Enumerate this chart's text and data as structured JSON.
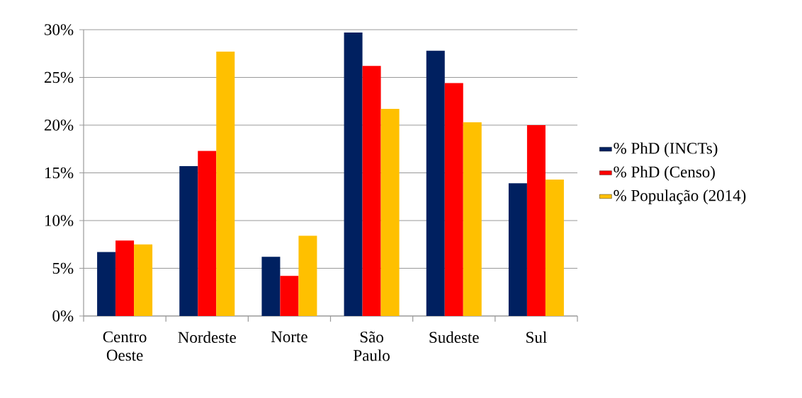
{
  "chart_data": {
    "type": "bar",
    "categories": [
      "Centro Oeste",
      "Nordeste",
      "Norte",
      "São Paulo",
      "Sudeste",
      "Sul"
    ],
    "series": [
      {
        "name": "% PhD (INCTs)",
        "color": "#002060",
        "values": [
          6.7,
          15.7,
          6.2,
          29.7,
          27.8,
          13.9
        ]
      },
      {
        "name": "% PhD (Censo)",
        "color": "#ff0000",
        "values": [
          7.9,
          17.3,
          4.2,
          26.2,
          24.4,
          20.0
        ]
      },
      {
        "name": "% População (2014)",
        "color": "#ffc000",
        "values": [
          7.5,
          27.7,
          8.4,
          21.7,
          20.3,
          14.3
        ]
      }
    ],
    "ylim": [
      0,
      30
    ],
    "yticks": [
      {
        "value": 0,
        "label": "0%"
      },
      {
        "value": 5,
        "label": "5%"
      },
      {
        "value": 10,
        "label": "10%"
      },
      {
        "value": 15,
        "label": "15%"
      },
      {
        "value": 20,
        "label": "20%"
      },
      {
        "value": 25,
        "label": "25%"
      },
      {
        "value": 30,
        "label": "30%"
      }
    ],
    "grid": "y",
    "legend": "right"
  }
}
